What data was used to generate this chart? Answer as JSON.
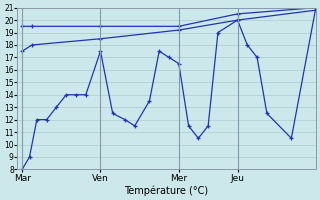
{
  "background_color": "#cce8ea",
  "grid_color": "#aacccc",
  "line_color": "#2233bb",
  "title": "Température (°C)",
  "ylim": [
    8,
    21
  ],
  "yticks": [
    8,
    9,
    10,
    11,
    12,
    13,
    14,
    15,
    16,
    17,
    18,
    19,
    20,
    21
  ],
  "day_labels": [
    "Mar",
    "Ven",
    "Mer",
    "Jeu"
  ],
  "day_positions": [
    0,
    32,
    64,
    88
  ],
  "total_points": 120,
  "line1_x": [
    0,
    3,
    6,
    10,
    14,
    18,
    22,
    26,
    32,
    37,
    42,
    46,
    52,
    56,
    60,
    64,
    68,
    72,
    76,
    80,
    88,
    92,
    96,
    100,
    110,
    120
  ],
  "line1_y": [
    8,
    9,
    12,
    12,
    13,
    14,
    14,
    14,
    17.5,
    12.5,
    12,
    11.5,
    13.5,
    17.5,
    17,
    16.5,
    11.5,
    10.5,
    11.5,
    19,
    20,
    18,
    17,
    12.5,
    10.5,
    21
  ],
  "line2_x": [
    0,
    4,
    32,
    64,
    88,
    120
  ],
  "line2_y": [
    19.5,
    19.5,
    19.5,
    19.5,
    20.5,
    21
  ],
  "line3_x": [
    0,
    4,
    32,
    64,
    88,
    120
  ],
  "line3_y": [
    17.5,
    18,
    18.5,
    19.2,
    20.0,
    20.8
  ]
}
